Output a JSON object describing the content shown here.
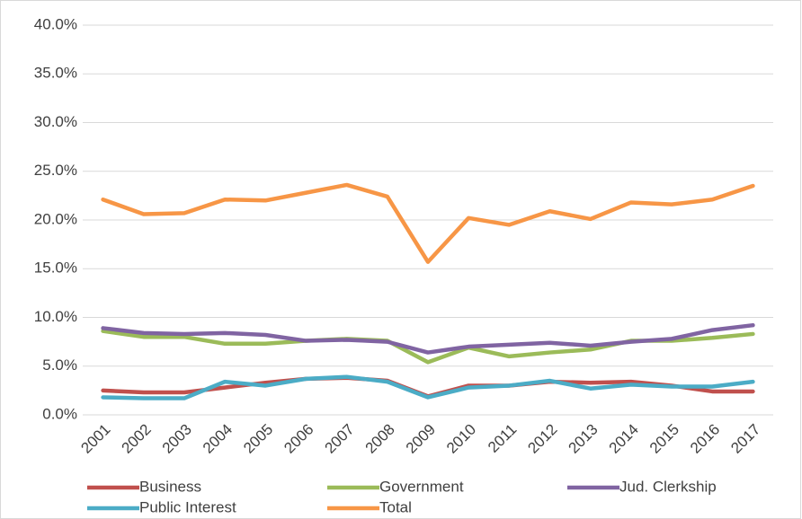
{
  "chart_data": {
    "type": "line",
    "categories": [
      "2001",
      "2002",
      "2003",
      "2004",
      "2005",
      "2006",
      "2007",
      "2008",
      "2009",
      "2010",
      "2011",
      "2012",
      "2013",
      "2014",
      "2015",
      "2016",
      "2017"
    ],
    "series": [
      {
        "name": "Business",
        "color": "#c0504d",
        "values": [
          2.5,
          2.3,
          2.3,
          2.8,
          3.3,
          3.7,
          3.8,
          3.5,
          1.9,
          3.0,
          3.0,
          3.4,
          3.3,
          3.4,
          3.0,
          2.4,
          2.4
        ]
      },
      {
        "name": "Government",
        "color": "#9bbb59",
        "values": [
          8.6,
          8.0,
          8.0,
          7.3,
          7.3,
          7.6,
          7.8,
          7.6,
          5.4,
          6.9,
          6.0,
          6.4,
          6.7,
          7.6,
          7.6,
          7.9,
          8.3
        ]
      },
      {
        "name": "Jud. Clerkship",
        "color": "#8064a2",
        "values": [
          8.9,
          8.4,
          8.3,
          8.4,
          8.2,
          7.6,
          7.7,
          7.5,
          6.4,
          7.0,
          7.2,
          7.4,
          7.1,
          7.5,
          7.8,
          8.7,
          9.2
        ]
      },
      {
        "name": "Public Interest",
        "color": "#4bacc6",
        "values": [
          1.8,
          1.7,
          1.7,
          3.4,
          3.0,
          3.7,
          3.9,
          3.4,
          1.8,
          2.8,
          3.0,
          3.5,
          2.7,
          3.1,
          2.9,
          2.9,
          3.4
        ]
      },
      {
        "name": "Total",
        "color": "#f79646",
        "values": [
          22.1,
          20.6,
          20.7,
          22.1,
          22.0,
          22.8,
          23.6,
          22.4,
          15.7,
          20.2,
          19.5,
          20.9,
          20.1,
          21.8,
          21.6,
          22.1,
          23.5
        ]
      }
    ],
    "ylim": [
      0,
      40
    ],
    "yticks": [
      {
        "value": 0,
        "label": "0.0%"
      },
      {
        "value": 5,
        "label": "5.0%"
      },
      {
        "value": 10,
        "label": "10.0%"
      },
      {
        "value": 15,
        "label": "15.0%"
      },
      {
        "value": 20,
        "label": "20.0%"
      },
      {
        "value": 25,
        "label": "25.0%"
      },
      {
        "value": 30,
        "label": "30.0%"
      },
      {
        "value": 35,
        "label": "35.0%"
      },
      {
        "value": 40,
        "label": "40.0%"
      }
    ],
    "grid": true,
    "legend": "bottom"
  }
}
